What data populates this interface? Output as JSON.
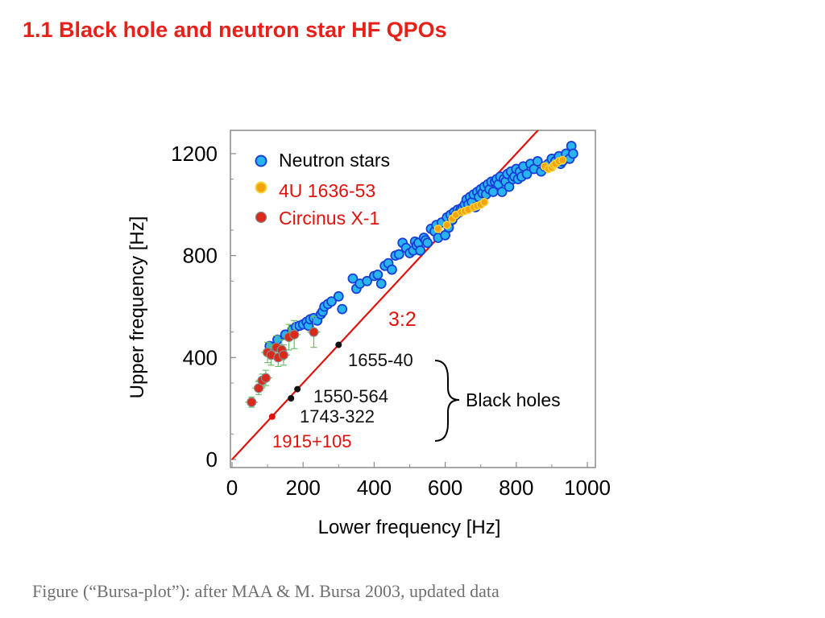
{
  "slide": {
    "title": "1.1 Black hole and neutron star  HF QPOs",
    "caption": "Figure (“Bursa-plot”): after  MAA & M. Bursa 2003, updated data"
  },
  "colors": {
    "title": "#e8201a",
    "neutron_fill": "#28b4f0",
    "neutron_edge": "#1a3fd6",
    "orange_fill": "#f5a30c",
    "orange_edge": "#f3d43c",
    "circinus_fill": "#d92a1c",
    "circinus_errorbar": "#6cc06c",
    "ratio_line": "#e0120c",
    "bh_black": "#111111",
    "bh_red": "#e0120c"
  },
  "chart_data": {
    "type": "scatter",
    "xlabel": "Lower frequency [Hz]",
    "ylabel": "Upper frequency [Hz]",
    "xlim": [
      0,
      1000
    ],
    "ylim": [
      -30,
      1230
    ],
    "xticks": [
      "0",
      "200",
      "400",
      "600",
      "800",
      "1000"
    ],
    "yticks": [
      "0",
      "400",
      "800",
      "1200"
    ],
    "grid": false,
    "legend_position": "top-left",
    "ratio_line": {
      "label": "3:2",
      "slope": 1.5
    },
    "series": [
      {
        "name": "Neutron stars",
        "x": [
          106,
          128,
          150,
          170,
          180,
          190,
          200,
          210,
          215,
          220,
          230,
          240,
          250,
          255,
          260,
          270,
          280,
          300,
          310,
          340,
          350,
          360,
          380,
          400,
          410,
          420,
          430,
          440,
          450,
          460,
          470,
          480,
          490,
          500,
          510,
          515,
          520,
          525,
          530,
          540,
          545,
          550,
          560,
          570,
          575,
          580,
          590,
          600,
          605,
          610,
          615,
          620,
          625,
          630,
          635,
          640,
          645,
          650,
          655,
          660,
          665,
          670,
          675,
          680,
          685,
          690,
          695,
          700,
          705,
          710,
          715,
          720,
          725,
          730,
          735,
          740,
          745,
          750,
          755,
          760,
          765,
          770,
          775,
          780,
          785,
          790,
          795,
          800,
          805,
          810,
          815,
          820,
          830,
          840,
          850,
          860,
          870,
          880,
          890,
          900,
          910,
          920,
          925,
          930,
          940,
          950,
          955,
          960
        ],
        "y": [
          445,
          470,
          490,
          510,
          520,
          525,
          530,
          540,
          525,
          550,
          555,
          545,
          570,
          580,
          600,
          610,
          620,
          640,
          590,
          710,
          670,
          690,
          700,
          720,
          725,
          690,
          760,
          770,
          745,
          800,
          805,
          850,
          830,
          810,
          820,
          855,
          840,
          850,
          820,
          870,
          860,
          850,
          905,
          895,
          920,
          870,
          930,
          880,
          950,
          910,
          960,
          940,
          970,
          960,
          980,
          970,
          985,
          990,
          1000,
          1020,
          1000,
          1030,
          1010,
          1040,
          990,
          1050,
          1030,
          1060,
          1045,
          1070,
          1040,
          1080,
          1060,
          1090,
          1050,
          1090,
          1100,
          1080,
          1110,
          1050,
          1100,
          1090,
          1120,
          1070,
          1130,
          1100,
          1110,
          1140,
          1100,
          1130,
          1110,
          1150,
          1120,
          1160,
          1140,
          1170,
          1130,
          1150,
          1160,
          1180,
          1170,
          1190,
          1160,
          1170,
          1200,
          1180,
          1230,
          1200
        ]
      },
      {
        "name": "4U 1636-53",
        "x": [
          580,
          605,
          620,
          630,
          645,
          655,
          665,
          680,
          690,
          700,
          710,
          880,
          890,
          900,
          905,
          910,
          920,
          930
        ],
        "y": [
          905,
          920,
          945,
          960,
          970,
          975,
          980,
          990,
          995,
          1000,
          1010,
          1150,
          1140,
          1145,
          1155,
          1160,
          1170,
          1175
        ]
      },
      {
        "name": "Circinus X-1",
        "x": [
          55,
          75,
          85,
          95,
          100,
          110,
          125,
          130,
          140,
          145,
          160,
          175,
          230
        ],
        "y": [
          225,
          280,
          310,
          320,
          420,
          410,
          440,
          400,
          430,
          410,
          480,
          490,
          500
        ],
        "yerr": [
          20,
          25,
          25,
          30,
          40,
          40,
          45,
          35,
          40,
          40,
          50,
          55,
          60
        ]
      },
      {
        "name": "Black holes",
        "points": [
          {
            "label": "1655-40",
            "x": 300,
            "y": 450
          },
          {
            "label": "1550-564",
            "x": 184,
            "y": 276
          },
          {
            "label": "1743-322",
            "x": 166,
            "y": 240
          },
          {
            "label": "1915+105",
            "x": 113,
            "y": 168
          }
        ],
        "group_label": "Black holes"
      }
    ]
  }
}
